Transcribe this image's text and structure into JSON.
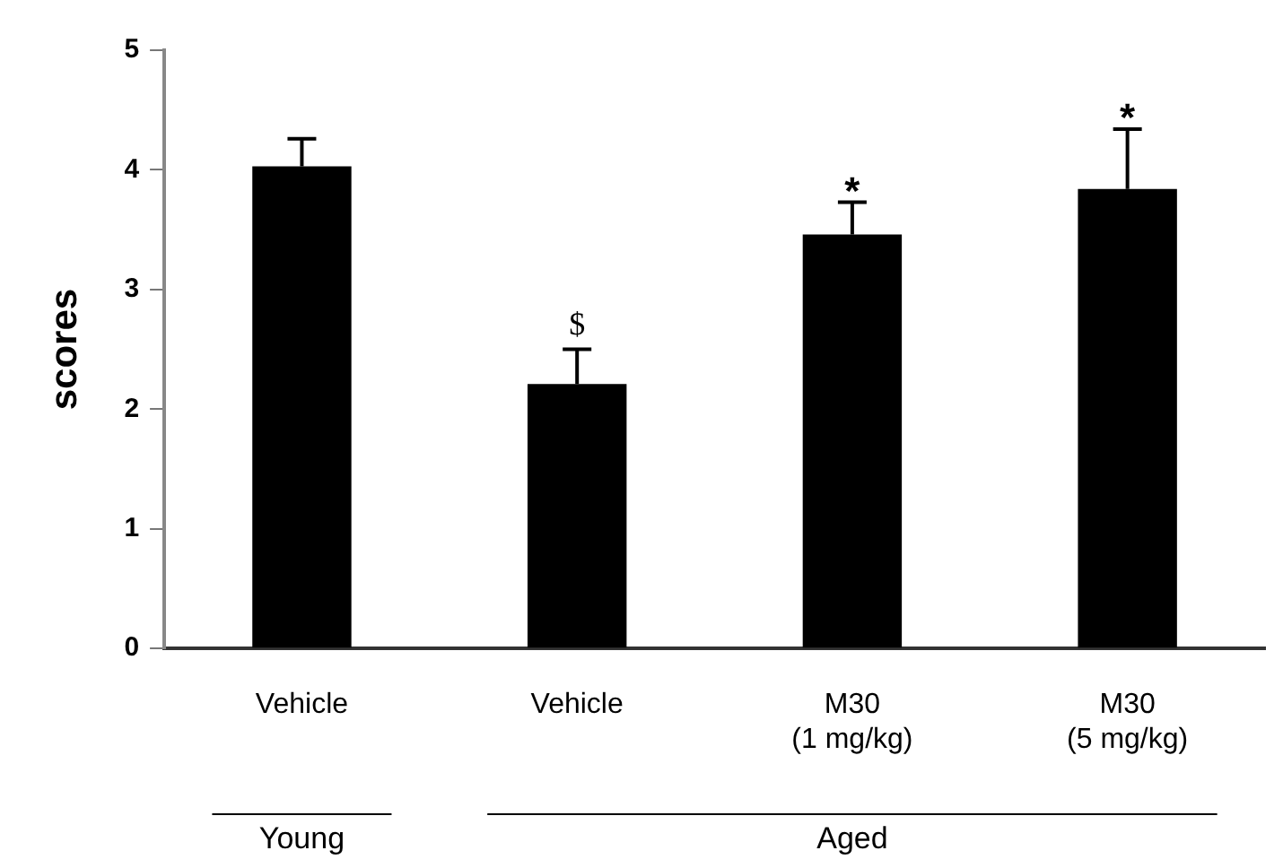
{
  "chart_data": {
    "type": "bar",
    "ylabel": "scores",
    "categories": [
      "Vehicle",
      "Vehicle",
      "M30\n(1 mg/kg)",
      "M30\n(5 mg/kg)"
    ],
    "values": [
      4.03,
      2.21,
      3.46,
      3.84
    ],
    "errors": [
      [
        4.03,
        4.26
      ],
      [
        2.21,
        2.5
      ],
      [
        3.46,
        3.73
      ],
      [
        3.84,
        4.34
      ]
    ],
    "color": "#000000",
    "ylim": [
      0,
      5
    ],
    "yticks": [
      0,
      1,
      2,
      3,
      4,
      5
    ],
    "grid": false,
    "legend": false,
    "annotations": [
      "$",
      "*",
      "*",
      "Young",
      "Aged"
    ]
  }
}
